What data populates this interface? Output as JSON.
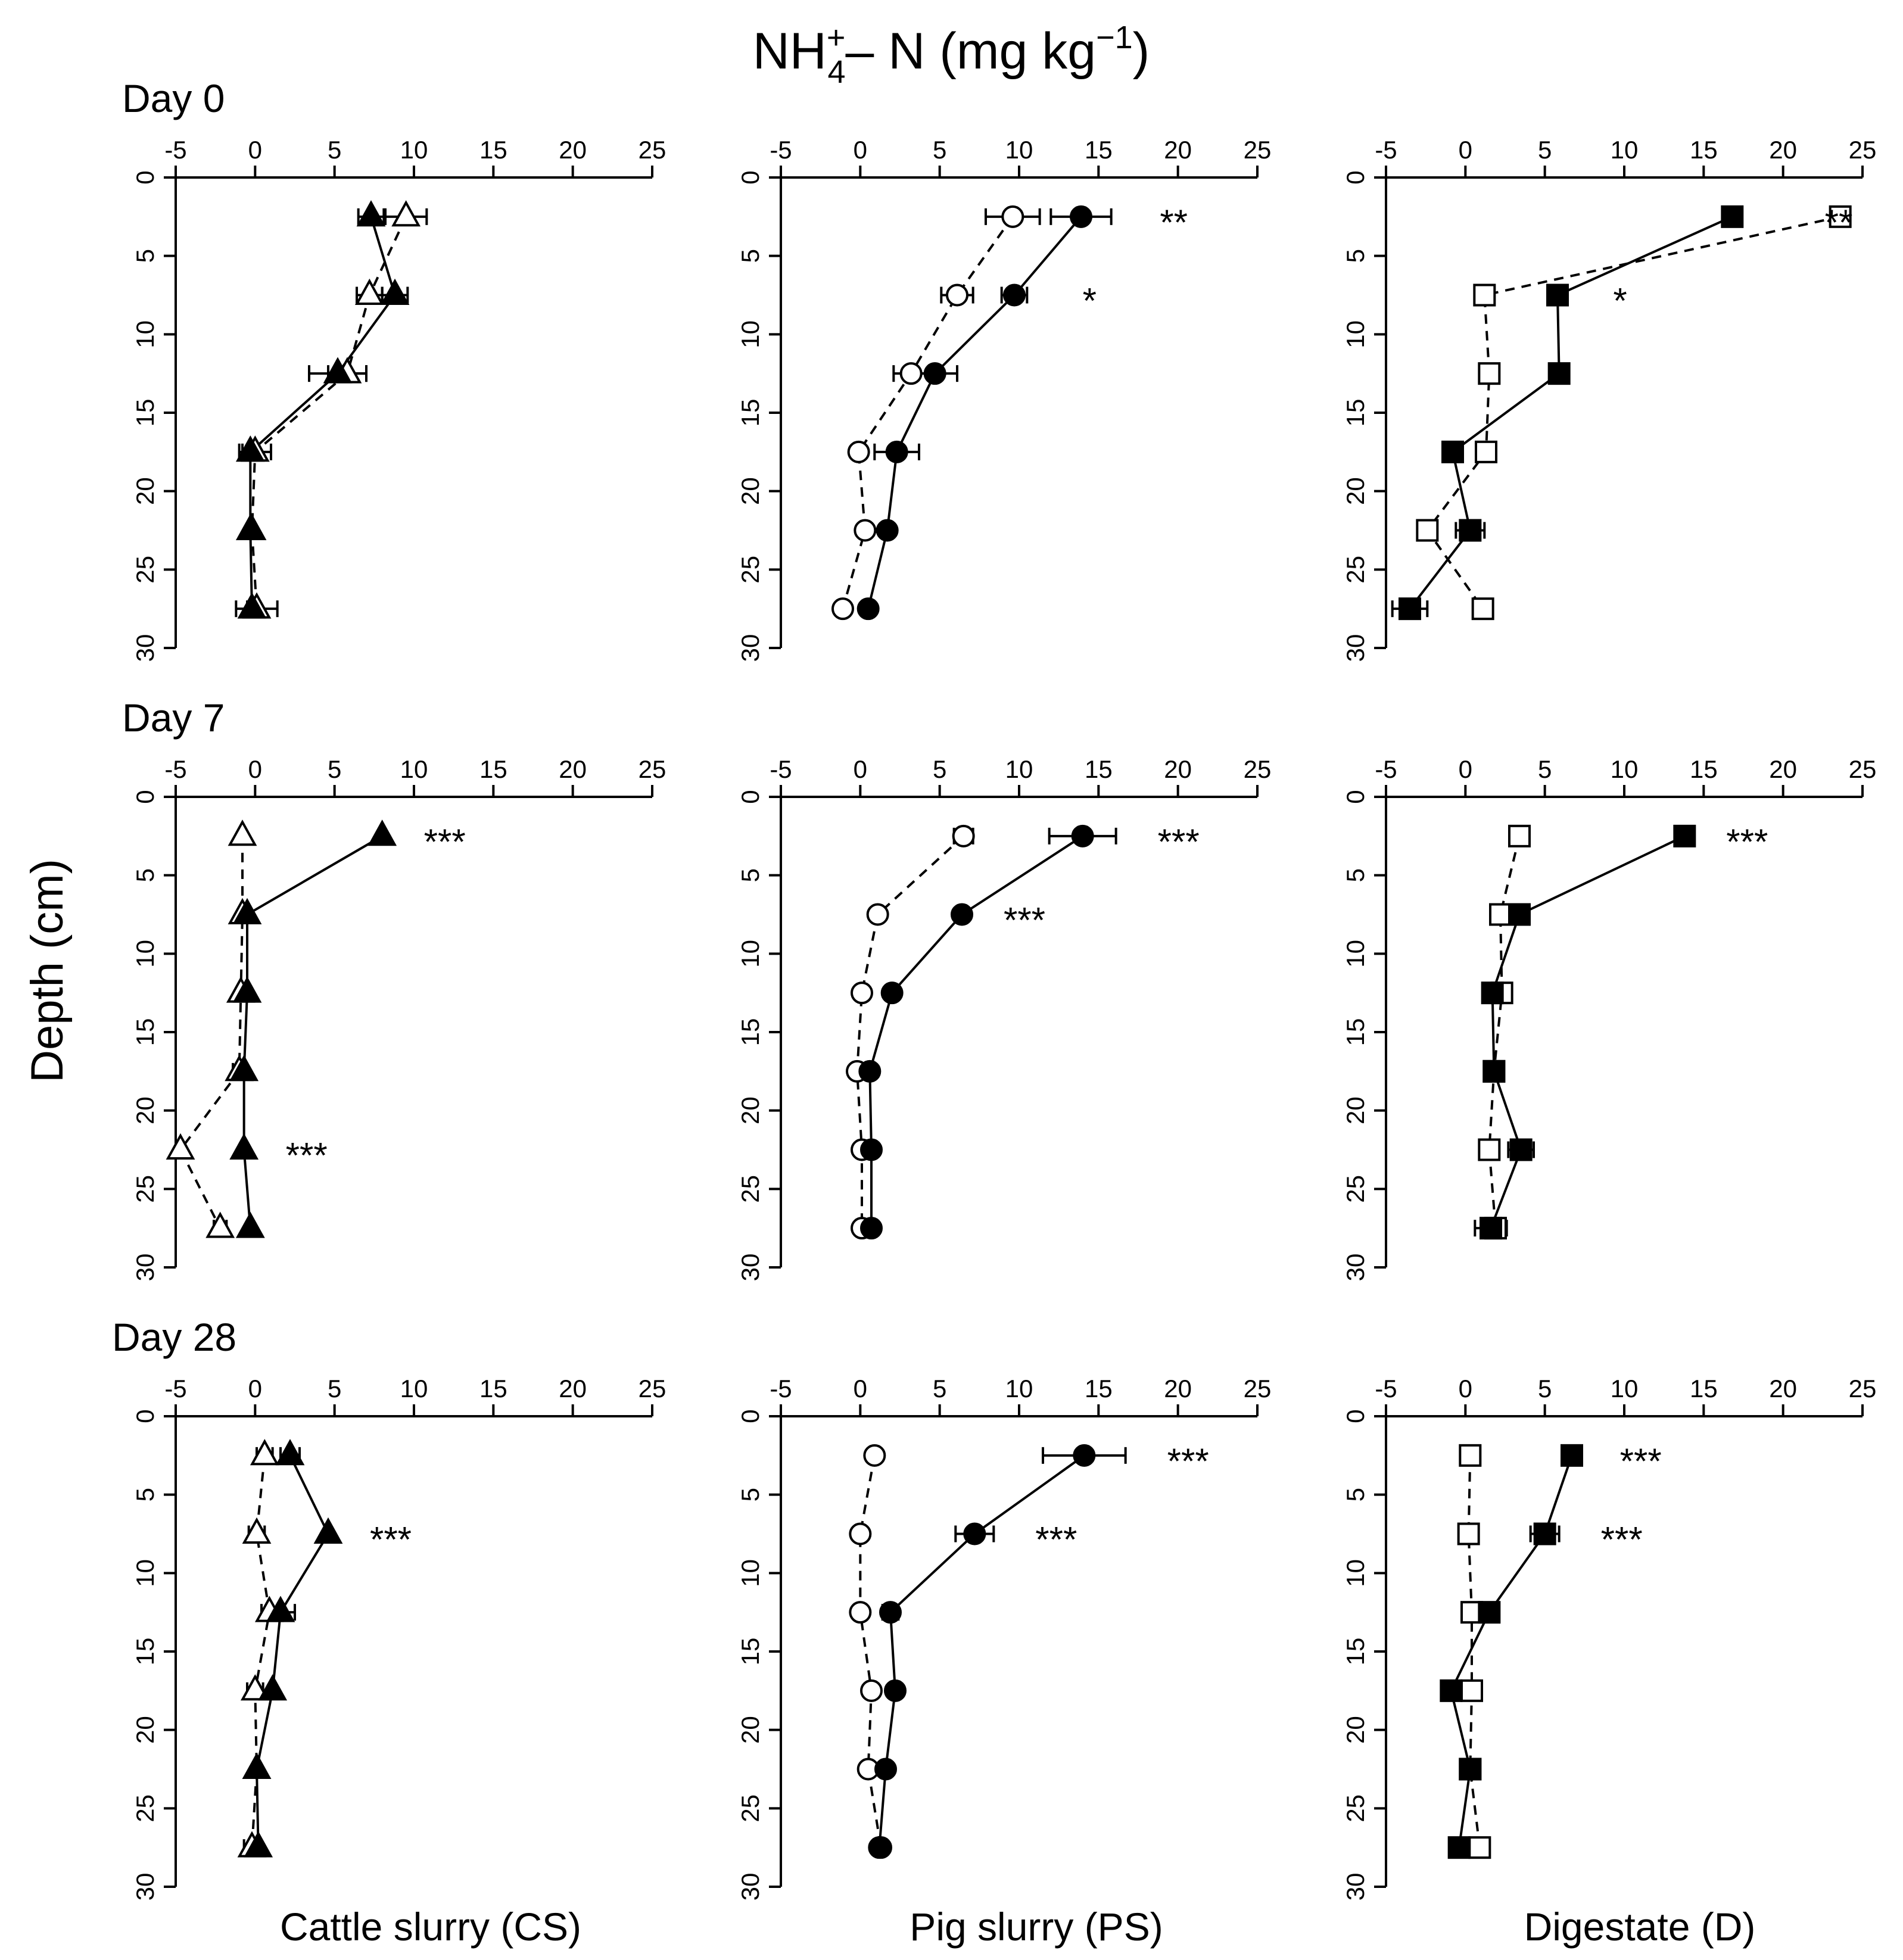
{
  "figure": {
    "title_main": "NH",
    "title_sup": "+",
    "title_sub": "4",
    "title_rest": "– N (mg kg",
    "title_unit_sup": "−1",
    "title_close": ")",
    "ylabel": "Depth (cm)",
    "colors": {
      "ink": "#000000",
      "background": "#ffffff"
    }
  },
  "chart_data": [
    {
      "type": "line",
      "panel": "day0-cs",
      "day_label": "Day 0",
      "xlabel": "",
      "column_label": "Cattle slurry (CS)",
      "xlim": [
        -5,
        25
      ],
      "ylim": [
        0,
        30
      ],
      "y_inverted": true,
      "xticks": [
        "-5",
        "0",
        "5",
        "10",
        "15",
        "20",
        "25"
      ],
      "yticks": [
        "0",
        "5",
        "10",
        "15",
        "20",
        "25",
        "30"
      ],
      "marker": "triangle",
      "series": [
        {
          "name": "filled",
          "fill": true,
          "dashed": false,
          "points": [
            [
              7.3,
              2.5,
              0.8
            ],
            [
              8.8,
              7.5,
              0.8
            ],
            [
              5.2,
              12.5,
              1.8
            ],
            [
              -0.3,
              17.5,
              0.5
            ],
            [
              -0.3,
              22.5,
              0
            ],
            [
              -0.2,
              27.5,
              0.3
            ]
          ]
        },
        {
          "name": "open",
          "fill": false,
          "dashed": true,
          "points": [
            [
              9.5,
              2.5,
              1.3
            ],
            [
              7.2,
              7.5,
              0.8
            ],
            [
              5.8,
              12.5,
              1.2
            ],
            [
              0,
              17.5,
              1.0
            ],
            [
              -0.2,
              22.5,
              0
            ],
            [
              0.1,
              27.5,
              1.3
            ]
          ]
        }
      ],
      "significance": [
        {
          "depth": 2.5,
          "label": ""
        }
      ]
    },
    {
      "type": "line",
      "panel": "day0-ps",
      "xlim": [
        -5,
        25
      ],
      "ylim": [
        0,
        30
      ],
      "y_inverted": true,
      "xticks": [
        "-5",
        "0",
        "5",
        "10",
        "15",
        "20",
        "25"
      ],
      "yticks": [
        "0",
        "5",
        "10",
        "15",
        "20",
        "25",
        "30"
      ],
      "marker": "circle",
      "series": [
        {
          "name": "filled",
          "fill": true,
          "dashed": false,
          "points": [
            [
              13.9,
              2.5,
              1.9
            ],
            [
              9.7,
              7.5,
              0.8
            ],
            [
              4.7,
              12.5,
              1.4
            ],
            [
              2.3,
              17.5,
              1.4
            ],
            [
              1.7,
              22.5,
              0
            ],
            [
              0.5,
              27.5,
              0
            ]
          ]
        },
        {
          "name": "open",
          "fill": false,
          "dashed": true,
          "points": [
            [
              9.6,
              2.5,
              1.7
            ],
            [
              6.1,
              7.5,
              1.0
            ],
            [
              3.2,
              12.5,
              1.1
            ],
            [
              -0.1,
              17.5,
              0
            ],
            [
              0.3,
              22.5,
              0
            ],
            [
              -1.1,
              27.5,
              0
            ]
          ]
        }
      ],
      "significance": [
        {
          "depth": 2.5,
          "label": "**"
        },
        {
          "depth": 7.5,
          "label": "*"
        }
      ]
    },
    {
      "type": "line",
      "panel": "day0-d",
      "xlim": [
        -5,
        25
      ],
      "ylim": [
        0,
        30
      ],
      "y_inverted": true,
      "xticks": [
        "-5",
        "0",
        "5",
        "10",
        "15",
        "20",
        "25"
      ],
      "yticks": [
        "0",
        "5",
        "10",
        "15",
        "20",
        "25",
        "30"
      ],
      "marker": "square",
      "series": [
        {
          "name": "filled",
          "fill": true,
          "dashed": false,
          "points": [
            [
              16.8,
              2.5,
              0
            ],
            [
              5.8,
              7.5,
              0
            ],
            [
              5.9,
              12.5,
              0
            ],
            [
              -0.8,
              17.5,
              0
            ],
            [
              0.3,
              22.5,
              0.9
            ],
            [
              -3.5,
              27.5,
              1.1
            ]
          ]
        },
        {
          "name": "open",
          "fill": false,
          "dashed": true,
          "points": [
            [
              23.6,
              2.5,
              0.4
            ],
            [
              1.2,
              7.5,
              0.5
            ],
            [
              1.5,
              12.5,
              0.4
            ],
            [
              1.3,
              17.5,
              0.5
            ],
            [
              -2.4,
              22.5,
              0.6
            ],
            [
              1.1,
              27.5,
              0.4
            ]
          ]
        }
      ],
      "significance": [
        {
          "depth": 2.5,
          "label": "**"
        },
        {
          "depth": 7.5,
          "label": "*"
        }
      ]
    },
    {
      "type": "line",
      "panel": "day7-cs",
      "day_label": "Day 7",
      "xlim": [
        -5,
        25
      ],
      "ylim": [
        0,
        30
      ],
      "y_inverted": true,
      "xticks": [
        "-5",
        "0",
        "5",
        "10",
        "15",
        "20",
        "25"
      ],
      "yticks": [
        "0",
        "5",
        "10",
        "15",
        "20",
        "25",
        "30"
      ],
      "marker": "triangle",
      "series": [
        {
          "name": "filled",
          "fill": true,
          "dashed": false,
          "points": [
            [
              8.0,
              2.5,
              0
            ],
            [
              -0.5,
              7.5,
              0
            ],
            [
              -0.5,
              12.5,
              0
            ],
            [
              -0.7,
              17.5,
              0
            ],
            [
              -0.7,
              22.5,
              0
            ],
            [
              -0.3,
              27.5,
              0
            ]
          ]
        },
        {
          "name": "open",
          "fill": false,
          "dashed": true,
          "points": [
            [
              -0.8,
              2.5,
              0
            ],
            [
              -0.8,
              7.5,
              0
            ],
            [
              -0.9,
              12.5,
              0
            ],
            [
              -1.0,
              17.5,
              0.4
            ],
            [
              -4.7,
              22.5,
              0.3
            ],
            [
              -2.2,
              27.5,
              0.4
            ]
          ]
        }
      ],
      "significance": [
        {
          "depth": 2.5,
          "label": "***"
        },
        {
          "depth": 22.5,
          "label": "***"
        }
      ]
    },
    {
      "type": "line",
      "panel": "day7-ps",
      "xlim": [
        -5,
        25
      ],
      "ylim": [
        0,
        30
      ],
      "y_inverted": true,
      "xticks": [
        "-5",
        "0",
        "5",
        "10",
        "15",
        "20",
        "25"
      ],
      "yticks": [
        "0",
        "5",
        "10",
        "15",
        "20",
        "25",
        "30"
      ],
      "marker": "circle",
      "series": [
        {
          "name": "filled",
          "fill": true,
          "dashed": false,
          "points": [
            [
              14.0,
              2.5,
              2.1
            ],
            [
              6.4,
              7.5,
              0
            ],
            [
              2.0,
              12.5,
              0
            ],
            [
              0.6,
              17.5,
              0
            ],
            [
              0.7,
              22.5,
              0
            ],
            [
              0.7,
              27.5,
              0
            ]
          ]
        },
        {
          "name": "open",
          "fill": false,
          "dashed": true,
          "points": [
            [
              6.5,
              2.5,
              0.6
            ],
            [
              1.1,
              7.5,
              0
            ],
            [
              0.1,
              12.5,
              0
            ],
            [
              -0.2,
              17.5,
              0
            ],
            [
              0.1,
              22.5,
              0
            ],
            [
              0.1,
              27.5,
              0
            ]
          ]
        }
      ],
      "significance": [
        {
          "depth": 2.5,
          "label": "***"
        },
        {
          "depth": 7.5,
          "label": "***"
        }
      ]
    },
    {
      "type": "line",
      "panel": "day7-d",
      "xlim": [
        -5,
        25
      ],
      "ylim": [
        0,
        30
      ],
      "y_inverted": true,
      "xticks": [
        "-5",
        "0",
        "5",
        "10",
        "15",
        "20",
        "25"
      ],
      "yticks": [
        "0",
        "5",
        "10",
        "15",
        "20",
        "25",
        "30"
      ],
      "marker": "square",
      "series": [
        {
          "name": "filled",
          "fill": true,
          "dashed": false,
          "points": [
            [
              13.8,
              2.5,
              0
            ],
            [
              3.4,
              7.5,
              0
            ],
            [
              1.7,
              12.5,
              0
            ],
            [
              1.8,
              17.5,
              0
            ],
            [
              3.5,
              22.5,
              0.8
            ],
            [
              1.6,
              27.5,
              1.0
            ]
          ]
        },
        {
          "name": "open",
          "fill": false,
          "dashed": true,
          "points": [
            [
              3.4,
              2.5,
              0.3
            ],
            [
              2.2,
              7.5,
              0.4
            ],
            [
              2.3,
              12.5,
              0.4
            ],
            [
              1.8,
              17.5,
              0
            ],
            [
              1.5,
              22.5,
              0.5
            ],
            [
              1.9,
              27.5,
              0.5
            ]
          ]
        }
      ],
      "significance": [
        {
          "depth": 2.5,
          "label": "***"
        }
      ]
    },
    {
      "type": "line",
      "panel": "day28-cs",
      "day_label": "Day 28",
      "xlim": [
        -5,
        25
      ],
      "ylim": [
        0,
        30
      ],
      "y_inverted": true,
      "xticks": [
        "-5",
        "0",
        "5",
        "10",
        "15",
        "20",
        "25"
      ],
      "yticks": [
        "0",
        "5",
        "10",
        "15",
        "20",
        "25",
        "30"
      ],
      "marker": "triangle",
      "series": [
        {
          "name": "filled",
          "fill": true,
          "dashed": false,
          "points": [
            [
              2.2,
              2.5,
              0.6
            ],
            [
              4.6,
              7.5,
              0
            ],
            [
              1.6,
              12.5,
              0.9
            ],
            [
              1.1,
              17.5,
              0
            ],
            [
              0.1,
              22.5,
              0
            ],
            [
              0.2,
              27.5,
              0
            ]
          ]
        },
        {
          "name": "open",
          "fill": false,
          "dashed": true,
          "points": [
            [
              0.6,
              2.5,
              0.5
            ],
            [
              0.1,
              7.5,
              0.5
            ],
            [
              0.9,
              12.5,
              0.5
            ],
            [
              0,
              17.5,
              0.5
            ],
            [
              0.1,
              22.5,
              0
            ],
            [
              -0.2,
              27.5,
              0.5
            ]
          ]
        }
      ],
      "significance": [
        {
          "depth": 7.5,
          "label": "***"
        }
      ]
    },
    {
      "type": "line",
      "panel": "day28-ps",
      "xlim": [
        -5,
        25
      ],
      "ylim": [
        0,
        30
      ],
      "y_inverted": true,
      "xticks": [
        "-5",
        "0",
        "5",
        "10",
        "15",
        "20",
        "25"
      ],
      "yticks": [
        "0",
        "5",
        "10",
        "15",
        "20",
        "25",
        "30"
      ],
      "marker": "circle",
      "series": [
        {
          "name": "filled",
          "fill": true,
          "dashed": false,
          "points": [
            [
              14.1,
              2.5,
              2.6
            ],
            [
              7.2,
              7.5,
              1.2
            ],
            [
              1.9,
              12.5,
              0.5
            ],
            [
              2.2,
              17.5,
              0
            ],
            [
              1.6,
              22.5,
              0
            ],
            [
              1.2,
              27.5,
              0
            ]
          ]
        },
        {
          "name": "open",
          "fill": false,
          "dashed": true,
          "points": [
            [
              0.9,
              2.5,
              0
            ],
            [
              0,
              7.5,
              0
            ],
            [
              0,
              12.5,
              0
            ],
            [
              0.7,
              17.5,
              0.4
            ],
            [
              0.5,
              22.5,
              0.4
            ],
            [
              1.3,
              27.5,
              0
            ]
          ]
        }
      ],
      "significance": [
        {
          "depth": 2.5,
          "label": "***"
        },
        {
          "depth": 7.5,
          "label": "***"
        }
      ]
    },
    {
      "type": "line",
      "panel": "day28-d",
      "xlim": [
        -5,
        25
      ],
      "ylim": [
        0,
        30
      ],
      "y_inverted": true,
      "xticks": [
        "-5",
        "0",
        "5",
        "10",
        "15",
        "20",
        "25"
      ],
      "yticks": [
        "0",
        "5",
        "10",
        "15",
        "20",
        "25",
        "30"
      ],
      "marker": "square",
      "series": [
        {
          "name": "filled",
          "fill": true,
          "dashed": false,
          "points": [
            [
              6.7,
              2.5,
              0.4
            ],
            [
              5.0,
              7.5,
              0.9
            ],
            [
              1.5,
              12.5,
              0.6
            ],
            [
              -0.9,
              17.5,
              0
            ],
            [
              0.3,
              22.5,
              0
            ],
            [
              -0.4,
              27.5,
              0
            ]
          ]
        },
        {
          "name": "open",
          "fill": false,
          "dashed": true,
          "points": [
            [
              0.3,
              2.5,
              0.4
            ],
            [
              0.2,
              7.5,
              0.4
            ],
            [
              0.4,
              12.5,
              0.4
            ],
            [
              0.4,
              17.5,
              0.4
            ],
            [
              0.3,
              22.5,
              0
            ],
            [
              0.9,
              27.5,
              0.4
            ]
          ]
        }
      ],
      "significance": [
        {
          "depth": 2.5,
          "label": "***"
        },
        {
          "depth": 7.5,
          "label": "***"
        }
      ]
    }
  ],
  "column_labels": [
    "Cattle slurry (CS)",
    "Pig slurry (PS)",
    "Digestate (D)"
  ],
  "row_labels": [
    "Day 0",
    "Day 7",
    "Day 28"
  ]
}
